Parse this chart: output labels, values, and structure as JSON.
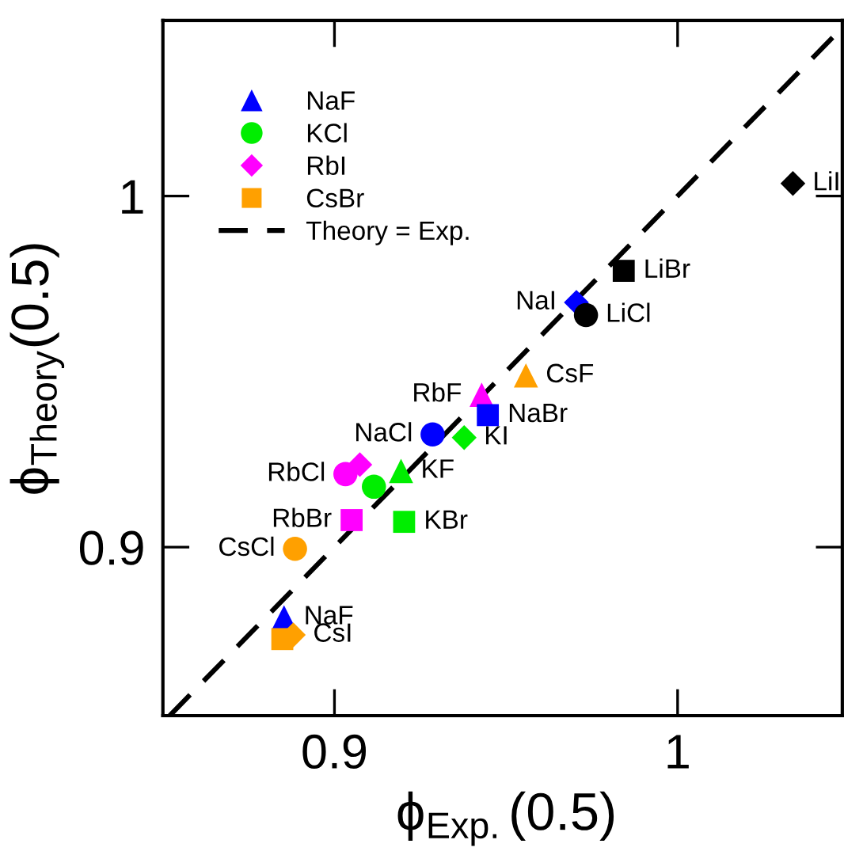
{
  "chart_data": {
    "type": "scatter",
    "xlabel": "ϕ$_{Exp.}$(0.5)",
    "ylabel": "ϕ$_{Theory}$(0.5)",
    "xlim": [
      0.85,
      1.048
    ],
    "ylim": [
      0.852,
      1.05
    ],
    "xticks": [
      0.9,
      1
    ],
    "yticks": [
      0.9,
      1
    ],
    "grid": false,
    "legend": "top left",
    "series": [
      {
        "name": "NaF",
        "color": "#0000ff",
        "marker": "triangle",
        "x": [
          0.8853
        ],
        "values": [
          0.88
        ]
      },
      {
        "name": "KCl",
        "color": "#00ee00",
        "marker": "circle",
        "x": [
          0.9115
        ],
        "values": [
          0.9172
        ]
      },
      {
        "name": "RbI",
        "color": "#ff00ff",
        "marker": "diamond",
        "x": [
          0.9074
        ],
        "values": [
          0.9235
        ]
      },
      {
        "name": "CsBr",
        "color": "#ffa000",
        "marker": "square",
        "x": [
          0.8848
        ],
        "values": [
          0.8738
        ]
      },
      {
        "name": "Theory = Exp.",
        "type": "line",
        "color": "#000000",
        "line_style": "dashed",
        "marker": "none",
        "x": [
          0.852,
          1.048
        ],
        "values": [
          0.852,
          1.048
        ]
      },
      {
        "color": "#ffa000",
        "marker": "diamond",
        "x": [
          0.888
        ],
        "values": [
          0.875
        ]
      },
      {
        "color": "#ffa000",
        "marker": "circle",
        "x": [
          0.8885
        ],
        "values": [
          0.8995
        ]
      },
      {
        "color": "#ff00ff",
        "marker": "square",
        "x": [
          0.905
        ],
        "values": [
          0.9077
        ]
      },
      {
        "color": "#ff00ff",
        "marker": "circle",
        "x": [
          0.9032
        ],
        "values": [
          0.9208
        ]
      },
      {
        "color": "#00ee00",
        "marker": "triangle",
        "x": [
          0.9194
        ],
        "values": [
          0.9217
        ]
      },
      {
        "color": "#00ee00",
        "marker": "square",
        "x": [
          0.9203
        ],
        "values": [
          0.9072
        ]
      },
      {
        "color": "#0000ff",
        "marker": "circle",
        "x": [
          0.9286
        ],
        "values": [
          0.9321
        ]
      },
      {
        "color": "#00ee00",
        "marker": "diamond",
        "x": [
          0.9378
        ],
        "values": [
          0.9312
        ]
      },
      {
        "color": "#ff00ff",
        "marker": "triangle",
        "x": [
          0.9429
        ],
        "values": [
          0.9434
        ]
      },
      {
        "color": "#0000ff",
        "marker": "square",
        "x": [
          0.9447
        ],
        "values": [
          0.9376
        ]
      },
      {
        "color": "#ffa000",
        "marker": "triangle",
        "x": [
          0.9558
        ],
        "values": [
          0.9489
        ]
      },
      {
        "color": "#0000ff",
        "marker": "diamond",
        "x": [
          0.9705
        ],
        "values": [
          0.9697
        ]
      },
      {
        "color": "#000000",
        "marker": "circle",
        "x": [
          0.9733
        ],
        "values": [
          0.9661
        ]
      },
      {
        "color": "#000000",
        "marker": "square",
        "x": [
          0.9843
        ],
        "values": [
          0.9787
        ]
      },
      {
        "color": "#000000",
        "marker": "diamond",
        "x": [
          1.0336
        ],
        "values": [
          1.0036
        ]
      }
    ],
    "annotations": [
      {
        "text": "NaF",
        "x": 0.8853,
        "y": 0.88
      },
      {
        "text": "CsI",
        "x": 0.888,
        "y": 0.875
      },
      {
        "text": "CsCl",
        "x": 0.8885,
        "y": 0.8995
      },
      {
        "text": "RbBr",
        "x": 0.905,
        "y": 0.9077
      },
      {
        "text": "RbCl",
        "x": 0.9032,
        "y": 0.9208
      },
      {
        "text": "KF",
        "x": 0.9194,
        "y": 0.9217
      },
      {
        "text": "KBr",
        "x": 0.9203,
        "y": 0.9072
      },
      {
        "text": "NaCl",
        "x": 0.9286,
        "y": 0.9321
      },
      {
        "text": "KI",
        "x": 0.9378,
        "y": 0.9312
      },
      {
        "text": "RbF",
        "x": 0.9429,
        "y": 0.9434
      },
      {
        "text": "NaBr",
        "x": 0.9447,
        "y": 0.9376
      },
      {
        "text": "CsF",
        "x": 0.9558,
        "y": 0.9489
      },
      {
        "text": "NaI",
        "x": 0.9705,
        "y": 0.9697
      },
      {
        "text": "LiCl",
        "x": 0.9733,
        "y": 0.9661
      },
      {
        "text": "LiBr",
        "x": 0.9843,
        "y": 0.9787
      },
      {
        "text": "LiI",
        "x": 1.0336,
        "y": 1.0036
      }
    ]
  }
}
